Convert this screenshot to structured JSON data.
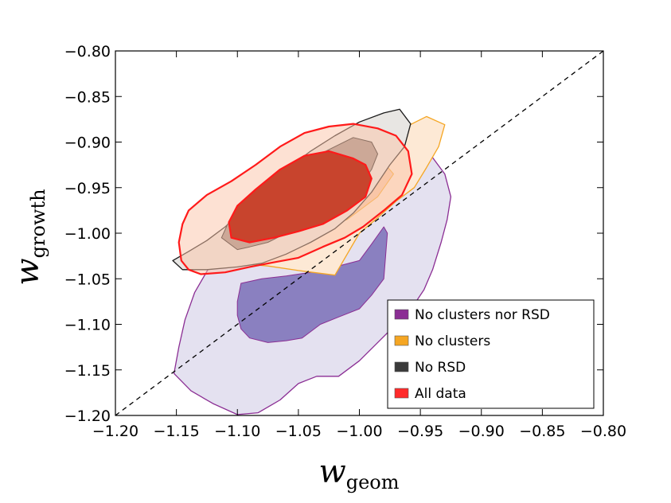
{
  "chart_data": {
    "type": "contour",
    "title": "",
    "xlabel": {
      "base": "w",
      "subscript": "geom"
    },
    "ylabel": {
      "base": "w",
      "subscript": "growth"
    },
    "xlim": [
      -1.2,
      -0.8
    ],
    "ylim": [
      -1.2,
      -0.8
    ],
    "xticks": [
      -1.2,
      -1.15,
      -1.1,
      -1.05,
      -1.0,
      -0.95,
      -0.9,
      -0.85,
      -0.8
    ],
    "yticks": [
      -1.2,
      -1.15,
      -1.1,
      -1.05,
      -1.0,
      -0.95,
      -0.9,
      -0.85,
      -0.8
    ],
    "xtick_labels": [
      "−1.20",
      "−1.15",
      "−1.10",
      "−1.05",
      "−1.00",
      "−0.95",
      "−0.90",
      "−0.85",
      "−0.80"
    ],
    "ytick_labels": [
      "−1.20",
      "−1.15",
      "−1.10",
      "−1.05",
      "−1.00",
      "−0.95",
      "−0.90",
      "−0.85",
      "−0.80"
    ],
    "reference_line": {
      "style": "dashed",
      "from": [
        -1.2,
        -1.2
      ],
      "to": [
        -0.8,
        -0.8
      ]
    },
    "legend": {
      "position": "lower-right",
      "entries": [
        {
          "label": "No clusters nor RSD",
          "color": "#8b2e94"
        },
        {
          "label": "No clusters",
          "color": "#f5a623"
        },
        {
          "label": "No RSD",
          "color": "#3a3a3a"
        },
        {
          "label": "All data",
          "color": "#ff2a2a"
        }
      ]
    },
    "series": [
      {
        "name": "No clusters nor RSD",
        "color": "#8b2e94",
        "outer_fill": "#e4e1f0",
        "inner_fill": "#8a80c0",
        "outer": [
          [
            -1.152,
            -1.154
          ],
          [
            -1.138,
            -1.173
          ],
          [
            -1.12,
            -1.187
          ],
          [
            -1.1,
            -1.199
          ],
          [
            -1.083,
            -1.197
          ],
          [
            -1.065,
            -1.183
          ],
          [
            -1.05,
            -1.165
          ],
          [
            -1.035,
            -1.157
          ],
          [
            -1.017,
            -1.157
          ],
          [
            -1.0,
            -1.14
          ],
          [
            -0.985,
            -1.12
          ],
          [
            -0.97,
            -1.1
          ],
          [
            -0.957,
            -1.082
          ],
          [
            -0.947,
            -1.062
          ],
          [
            -0.94,
            -1.04
          ],
          [
            -0.933,
            -1.01
          ],
          [
            -0.928,
            -0.985
          ],
          [
            -0.925,
            -0.96
          ],
          [
            -0.93,
            -0.935
          ],
          [
            -0.94,
            -0.917
          ],
          [
            -0.955,
            -0.9
          ],
          [
            -0.97,
            -0.895
          ],
          [
            -0.99,
            -0.9
          ],
          [
            -1.01,
            -0.915
          ],
          [
            -1.03,
            -0.93
          ],
          [
            -1.05,
            -0.945
          ],
          [
            -1.07,
            -0.962
          ],
          [
            -1.09,
            -0.985
          ],
          [
            -1.108,
            -1.01
          ],
          [
            -1.122,
            -1.035
          ],
          [
            -1.135,
            -1.065
          ],
          [
            -1.143,
            -1.095
          ],
          [
            -1.148,
            -1.125
          ]
        ],
        "inner": [
          [
            -1.0,
            -1.03
          ],
          [
            -1.02,
            -1.037
          ],
          [
            -1.04,
            -1.043
          ],
          [
            -1.06,
            -1.047
          ],
          [
            -1.08,
            -1.05
          ],
          [
            -1.097,
            -1.055
          ],
          [
            -1.1,
            -1.075
          ],
          [
            -1.1,
            -1.09
          ],
          [
            -1.097,
            -1.105
          ],
          [
            -1.09,
            -1.115
          ],
          [
            -1.075,
            -1.12
          ],
          [
            -1.06,
            -1.118
          ],
          [
            -1.047,
            -1.115
          ],
          [
            -1.032,
            -1.1
          ],
          [
            -1.017,
            -1.092
          ],
          [
            -1.0,
            -1.083
          ],
          [
            -0.99,
            -1.068
          ],
          [
            -0.98,
            -1.05
          ],
          [
            -0.977,
            -1.0
          ],
          [
            -0.98,
            -0.993
          ],
          [
            -0.99,
            -1.012
          ]
        ]
      },
      {
        "name": "No clusters",
        "color": "#f5a623",
        "outer_fill": "#fde9d5",
        "inner_fill": "#f7c9a6",
        "outer": [
          [
            -1.02,
            -1.046
          ],
          [
            -1.05,
            -1.041
          ],
          [
            -1.075,
            -1.036
          ],
          [
            -1.1,
            -1.033
          ],
          [
            -1.123,
            -1.027
          ],
          [
            -1.12,
            -1.015
          ],
          [
            -1.1,
            -1.0
          ],
          [
            -1.08,
            -0.985
          ],
          [
            -1.062,
            -0.965
          ],
          [
            -1.042,
            -0.945
          ],
          [
            -1.022,
            -0.925
          ],
          [
            -1.0,
            -0.908
          ],
          [
            -0.98,
            -0.893
          ],
          [
            -0.96,
            -0.882
          ],
          [
            -0.945,
            -0.872
          ],
          [
            -0.93,
            -0.881
          ],
          [
            -0.935,
            -0.905
          ],
          [
            -0.945,
            -0.928
          ],
          [
            -0.955,
            -0.95
          ],
          [
            -0.97,
            -0.965
          ],
          [
            -0.985,
            -0.983
          ],
          [
            -1.0,
            -1.0
          ]
        ],
        "inner": [
          [
            -1.07,
            -1.005
          ],
          [
            -1.04,
            -1.0
          ],
          [
            -1.01,
            -0.985
          ],
          [
            -0.985,
            -0.96
          ],
          [
            -0.972,
            -0.935
          ],
          [
            -0.985,
            -0.915
          ],
          [
            -1.01,
            -0.91
          ],
          [
            -1.04,
            -0.925
          ],
          [
            -1.065,
            -0.948
          ],
          [
            -1.085,
            -0.973
          ],
          [
            -1.088,
            -0.995
          ]
        ]
      },
      {
        "name": "No RSD",
        "color": "#1a1a1a",
        "outer_fill": "#e8e6e3",
        "inner_fill": "#9d8d86",
        "outer": [
          [
            -1.153,
            -1.03
          ],
          [
            -1.14,
            -1.02
          ],
          [
            -1.125,
            -1.008
          ],
          [
            -1.11,
            -0.993
          ],
          [
            -1.095,
            -0.975
          ],
          [
            -1.078,
            -0.955
          ],
          [
            -1.06,
            -0.93
          ],
          [
            -1.04,
            -0.91
          ],
          [
            -1.02,
            -0.893
          ],
          [
            -1.0,
            -0.878
          ],
          [
            -0.98,
            -0.868
          ],
          [
            -0.967,
            -0.864
          ],
          [
            -0.958,
            -0.88
          ],
          [
            -0.963,
            -0.905
          ],
          [
            -0.975,
            -0.925
          ],
          [
            -0.99,
            -0.955
          ],
          [
            -1.005,
            -0.978
          ],
          [
            -1.02,
            -0.995
          ],
          [
            -1.04,
            -1.01
          ],
          [
            -1.06,
            -1.023
          ],
          [
            -1.08,
            -1.033
          ],
          [
            -1.1,
            -1.037
          ],
          [
            -1.125,
            -1.04
          ],
          [
            -1.145,
            -1.04
          ]
        ],
        "inner": [
          [
            -1.1,
            -1.018
          ],
          [
            -1.09,
            -1.015
          ],
          [
            -1.075,
            -1.01
          ],
          [
            -1.06,
            -1.0
          ],
          [
            -1.045,
            -0.99
          ],
          [
            -1.03,
            -0.98
          ],
          [
            -1.015,
            -0.968
          ],
          [
            -1.0,
            -0.95
          ],
          [
            -0.99,
            -0.93
          ],
          [
            -0.985,
            -0.913
          ],
          [
            -0.99,
            -0.9
          ],
          [
            -1.005,
            -0.895
          ],
          [
            -1.02,
            -0.905
          ],
          [
            -1.035,
            -0.915
          ],
          [
            -1.05,
            -0.93
          ],
          [
            -1.07,
            -0.948
          ],
          [
            -1.09,
            -0.97
          ],
          [
            -1.108,
            -0.99
          ],
          [
            -1.113,
            -1.005
          ]
        ]
      },
      {
        "name": "All data",
        "color": "#ff1a1a",
        "outer_fill": "rgba(252,196,168,0.5)",
        "inner_fill": "#c8442d",
        "outer": [
          [
            -1.14,
            -1.04
          ],
          [
            -1.13,
            -1.045
          ],
          [
            -1.11,
            -1.043
          ],
          [
            -1.09,
            -1.037
          ],
          [
            -1.07,
            -1.032
          ],
          [
            -1.05,
            -1.027
          ],
          [
            -1.03,
            -1.015
          ],
          [
            -1.012,
            -1.005
          ],
          [
            -0.997,
            -0.993
          ],
          [
            -0.98,
            -0.975
          ],
          [
            -0.965,
            -0.958
          ],
          [
            -0.957,
            -0.935
          ],
          [
            -0.96,
            -0.91
          ],
          [
            -0.97,
            -0.893
          ],
          [
            -0.985,
            -0.885
          ],
          [
            -1.005,
            -0.88
          ],
          [
            -1.025,
            -0.883
          ],
          [
            -1.045,
            -0.89
          ],
          [
            -1.065,
            -0.905
          ],
          [
            -1.085,
            -0.925
          ],
          [
            -1.105,
            -0.943
          ],
          [
            -1.125,
            -0.958
          ],
          [
            -1.14,
            -0.975
          ],
          [
            -1.145,
            -0.99
          ],
          [
            -1.148,
            -1.01
          ],
          [
            -1.146,
            -1.03
          ]
        ],
        "inner": [
          [
            -1.09,
            -1.01
          ],
          [
            -1.07,
            -1.005
          ],
          [
            -1.05,
            -0.998
          ],
          [
            -1.03,
            -0.99
          ],
          [
            -1.01,
            -0.975
          ],
          [
            -0.995,
            -0.96
          ],
          [
            -0.99,
            -0.94
          ],
          [
            -0.995,
            -0.925
          ],
          [
            -1.005,
            -0.918
          ],
          [
            -1.025,
            -0.91
          ],
          [
            -1.045,
            -0.915
          ],
          [
            -1.065,
            -0.93
          ],
          [
            -1.085,
            -0.952
          ],
          [
            -1.1,
            -0.97
          ],
          [
            -1.107,
            -0.988
          ],
          [
            -1.105,
            -1.005
          ]
        ]
      }
    ]
  }
}
